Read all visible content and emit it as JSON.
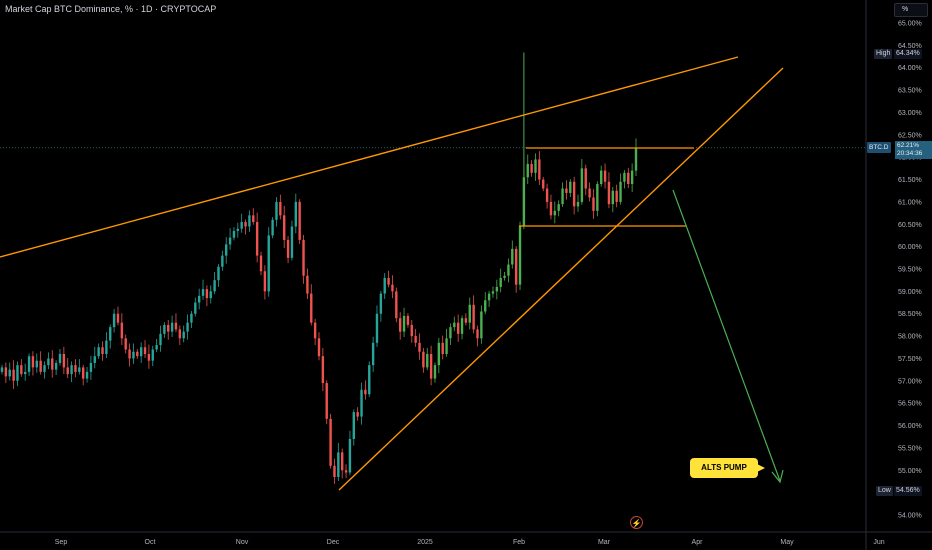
{
  "header": {
    "title": "Market Cap BTC Dominance, % · 1D · CRYPTOCAP"
  },
  "scale_button": {
    "label": "%"
  },
  "symbol_tag": {
    "label": "BTC.D",
    "value": "62.21%",
    "countdown": "20:34:36"
  },
  "high_tag": {
    "label": "High",
    "value": "64.34%"
  },
  "low_tag": {
    "label": "Low",
    "value": "54.56%"
  },
  "annotation": {
    "text": "ALTS PUMP"
  },
  "colors": {
    "up": "#26a69a",
    "up_bright": "#4caf50",
    "down": "#ef5350",
    "trendline": "#ff9800",
    "arrow": "#4caf50",
    "callout": "#ffe23a",
    "background": "#000000"
  },
  "chart_data": {
    "type": "candlestick",
    "title": "Market Cap BTC Dominance, % · 1D · CRYPTOCAP",
    "xlabel": "",
    "ylabel": "",
    "x_ticks": [
      "Sep",
      "Oct",
      "Nov",
      "Dec",
      "2025",
      "Feb",
      "Mar",
      "Apr",
      "May",
      "Jun"
    ],
    "y_ticks": [
      "65.00%",
      "64.50%",
      "64.00%",
      "63.50%",
      "63.00%",
      "62.50%",
      "62.00%",
      "61.50%",
      "61.00%",
      "60.50%",
      "60.00%",
      "59.50%",
      "59.00%",
      "58.50%",
      "58.00%",
      "57.50%",
      "57.00%",
      "56.50%",
      "56.00%",
      "55.50%",
      "55.00%",
      "54.50%",
      "54.00%"
    ],
    "ylim": [
      53.7,
      65.15
    ],
    "last_price": 62.21,
    "high": 64.34,
    "low": 54.56,
    "grid": false,
    "close_series": [
      57.3,
      57.1,
      57.25,
      57.0,
      57.35,
      57.15,
      57.2,
      57.55,
      57.3,
      57.45,
      57.2,
      57.35,
      57.5,
      57.25,
      57.4,
      57.6,
      57.3,
      57.15,
      57.35,
      57.2,
      57.3,
      57.05,
      57.2,
      57.4,
      57.55,
      57.75,
      57.6,
      57.9,
      58.2,
      58.5,
      58.3,
      57.95,
      57.7,
      57.5,
      57.65,
      57.55,
      57.75,
      57.6,
      57.45,
      57.7,
      57.8,
      58.05,
      58.25,
      58.1,
      58.3,
      58.15,
      57.95,
      58.1,
      58.3,
      58.5,
      58.75,
      58.9,
      59.05,
      58.85,
      59.0,
      59.25,
      59.55,
      59.8,
      60.05,
      60.2,
      60.35,
      60.4,
      60.55,
      60.45,
      60.7,
      60.55,
      59.8,
      59.45,
      59.0,
      60.25,
      60.6,
      61.0,
      60.7,
      60.15,
      59.75,
      60.45,
      61.0,
      60.15,
      59.35,
      58.95,
      58.3,
      57.95,
      57.55,
      56.95,
      56.15,
      55.1,
      54.85,
      55.4,
      55.0,
      54.95,
      55.7,
      56.3,
      56.2,
      56.8,
      56.7,
      57.35,
      57.85,
      58.5,
      58.95,
      59.3,
      59.15,
      59.0,
      58.4,
      58.1,
      58.45,
      58.25,
      58.0,
      57.85,
      57.65,
      57.3,
      57.6,
      57.05,
      57.35,
      57.85,
      57.6,
      57.95,
      58.2,
      58.3,
      58.05,
      58.4,
      58.3,
      58.7,
      58.15,
      57.95,
      58.55,
      58.8,
      58.95,
      59.0,
      59.1,
      59.3,
      59.35,
      59.6,
      59.95,
      59.15,
      60.45,
      61.55,
      61.85,
      61.65,
      61.95,
      61.5,
      61.3,
      61.0,
      60.7,
      60.8,
      60.95,
      61.3,
      61.2,
      61.45,
      60.9,
      61.0,
      61.75,
      61.3,
      61.1,
      60.8,
      61.4,
      61.7,
      61.45,
      60.95,
      61.25,
      61.0,
      61.45,
      61.65,
      61.4,
      61.7,
      62.21
    ],
    "annotations": [
      "ALTS PUMP"
    ]
  }
}
